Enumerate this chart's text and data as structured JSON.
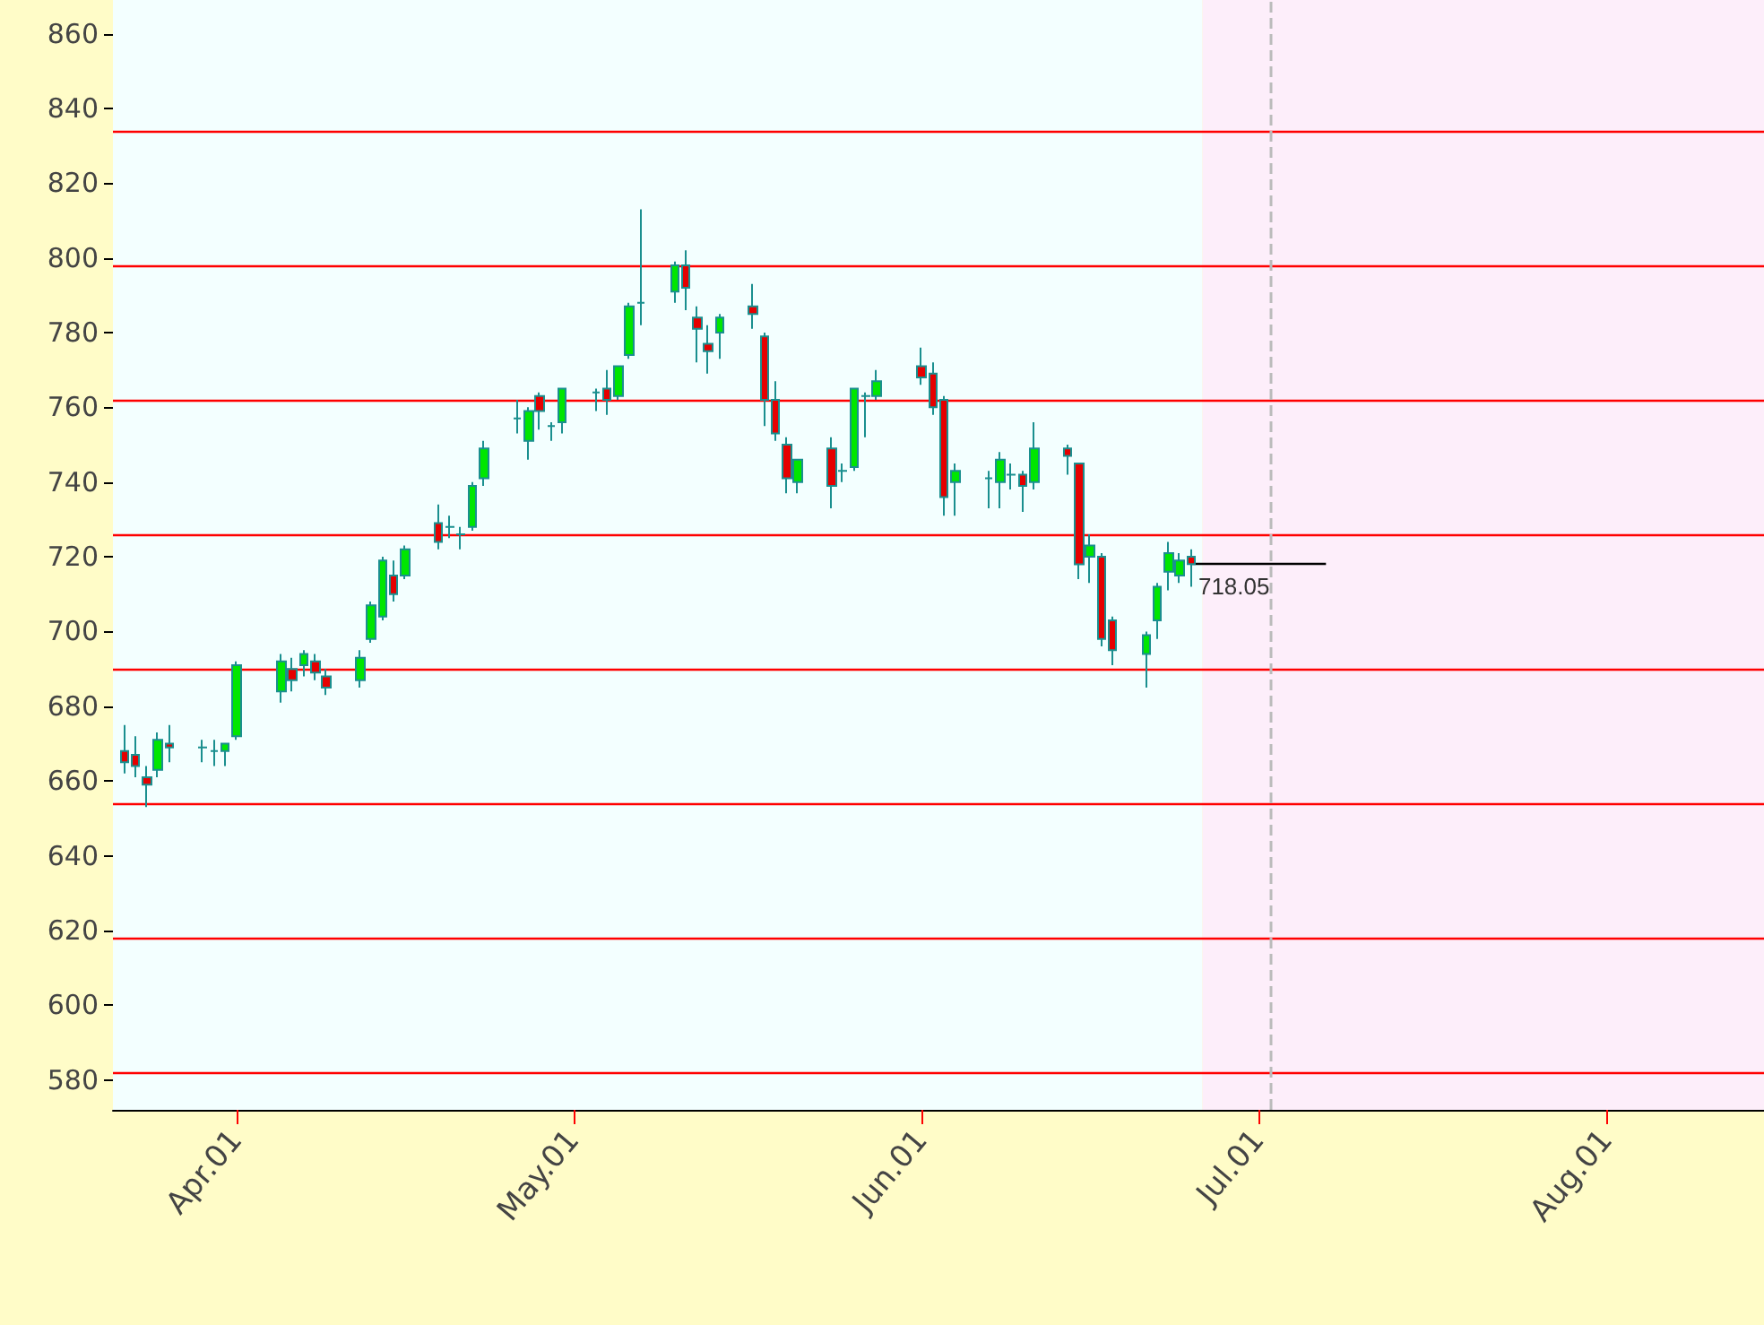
{
  "chart_data": {
    "type": "candlestick",
    "x": [
      "--03-22",
      "--03-23",
      "--03-24",
      "--03-25",
      "--03-26",
      "--03-29",
      "--03-30",
      "--03-31",
      "--04-01",
      "--04-05",
      "--04-06",
      "--04-07",
      "--04-08",
      "--04-09",
      "--04-12",
      "--04-13",
      "--04-14",
      "--04-15",
      "--04-16",
      "--04-19",
      "--04-20",
      "--04-21",
      "--04-22",
      "--04-23",
      "--04-26",
      "--04-27",
      "--04-28",
      "--04-29",
      "--04-30",
      "--05-03",
      "--05-04",
      "--05-05",
      "--05-06",
      "--05-07",
      "--05-10",
      "--05-11",
      "--05-12",
      "--05-13",
      "--05-14",
      "--05-17",
      "--05-18",
      "--05-19",
      "--05-20",
      "--05-21",
      "--05-24",
      "--05-25",
      "--05-26",
      "--05-27",
      "--05-28",
      "--06-01",
      "--06-02",
      "--06-03",
      "--06-04",
      "--06-07",
      "--06-08",
      "--06-09",
      "--06-10",
      "--06-11",
      "--06-14",
      "--06-15",
      "--06-16",
      "--06-17",
      "--06-18",
      "--06-21",
      "--06-22",
      "--06-23",
      "--06-24",
      "--06-25"
    ],
    "ohlc": [
      [
        668,
        675,
        662,
        665
      ],
      [
        667,
        672,
        661,
        664
      ],
      [
        661,
        664,
        653,
        659
      ],
      [
        663,
        673,
        661,
        671
      ],
      [
        670,
        675,
        665,
        669
      ],
      [
        669,
        671,
        665,
        669
      ],
      [
        668,
        671,
        664,
        668
      ],
      [
        668,
        670,
        664,
        670
      ],
      [
        672,
        692,
        671,
        691
      ],
      [
        684,
        694,
        681,
        692
      ],
      [
        690,
        693,
        684,
        687
      ],
      [
        691,
        695,
        688,
        694
      ],
      [
        692,
        694,
        687,
        689
      ],
      [
        688,
        690,
        683,
        685
      ],
      [
        687,
        695,
        685,
        693
      ],
      [
        698,
        708,
        697,
        707
      ],
      [
        704,
        720,
        703,
        719
      ],
      [
        715,
        719,
        708,
        710
      ],
      [
        715,
        723,
        714,
        722
      ],
      [
        729,
        734,
        722,
        724
      ],
      [
        728,
        731,
        725,
        728
      ],
      [
        726,
        728,
        722,
        726
      ],
      [
        728,
        740,
        727,
        739
      ],
      [
        741,
        751,
        739,
        749
      ],
      [
        757,
        762,
        753,
        757
      ],
      [
        751,
        760,
        746,
        759
      ],
      [
        763,
        764,
        754,
        759
      ],
      [
        755,
        756,
        751,
        755
      ],
      [
        756,
        765,
        753,
        765
      ],
      [
        764,
        765,
        759,
        764
      ],
      [
        765,
        770,
        758,
        762
      ],
      [
        763,
        771,
        762,
        771
      ],
      [
        774,
        788,
        773,
        787
      ],
      [
        788,
        813,
        782,
        788
      ],
      [
        791,
        799,
        788,
        798
      ],
      [
        798,
        802,
        786,
        792
      ],
      [
        784,
        787,
        772,
        781
      ],
      [
        777,
        782,
        769,
        775
      ],
      [
        780,
        785,
        773,
        784
      ],
      [
        787,
        793,
        781,
        785
      ],
      [
        779,
        780,
        755,
        762
      ],
      [
        762,
        767,
        751,
        753
      ],
      [
        750,
        752,
        737,
        741
      ],
      [
        740,
        746,
        737,
        746
      ],
      [
        749,
        752,
        733,
        739
      ],
      [
        743,
        745,
        740,
        743
      ],
      [
        744,
        765,
        743,
        765
      ],
      [
        763,
        764,
        752,
        763
      ],
      [
        763,
        770,
        762,
        767
      ],
      [
        771,
        776,
        766,
        768
      ],
      [
        769,
        772,
        758,
        760
      ],
      [
        762,
        763,
        731,
        736
      ],
      [
        740,
        745,
        731,
        743
      ],
      [
        741,
        743,
        733,
        741
      ],
      [
        740,
        748,
        733,
        746
      ],
      [
        742,
        745,
        738,
        742
      ],
      [
        742,
        743,
        732,
        739
      ],
      [
        740,
        756,
        738,
        749
      ],
      [
        749,
        750,
        742,
        747
      ],
      [
        745,
        745,
        714,
        718
      ],
      [
        720,
        726,
        713,
        723
      ],
      [
        720,
        721,
        696,
        698
      ],
      [
        703,
        704,
        691,
        695
      ],
      [
        694,
        700,
        685,
        699
      ],
      [
        703,
        713,
        698,
        712
      ],
      [
        716,
        724,
        711,
        721
      ],
      [
        715,
        721,
        713,
        719
      ],
      [
        720,
        722,
        712,
        718.05
      ]
    ],
    "colors": [
      "#e60000",
      "#e60000",
      "#e60000",
      "#00e600",
      "#e60000",
      "#1a8f8f",
      "#1a8f8f",
      "#00e600",
      "#00e600",
      "#00e600",
      "#e60000",
      "#00e600",
      "#e60000",
      "#e60000",
      "#00e600",
      "#00e600",
      "#00e600",
      "#e60000",
      "#00e600",
      "#e60000",
      "#1a8f8f",
      "#1a8f8f",
      "#00e600",
      "#00e600",
      "#1a8f8f",
      "#00e600",
      "#e60000",
      "#1a8f8f",
      "#00e600",
      "#1a8f8f",
      "#e60000",
      "#00e600",
      "#00e600",
      "#1a8f8f",
      "#00e600",
      "#e60000",
      "#e60000",
      "#e60000",
      "#00e600",
      "#e60000",
      "#e60000",
      "#e60000",
      "#e60000",
      "#00e600",
      "#e60000",
      "#1a8f8f",
      "#00e600",
      "#1a8f8f",
      "#00e600",
      "#e60000",
      "#e60000",
      "#e60000",
      "#00e600",
      "#1a8f8f",
      "#00e600",
      "#1a8f8f",
      "#e60000",
      "#00e600",
      "#e60000",
      "#e60000",
      "#00e600",
      "#e60000",
      "#e60000",
      "#00e600",
      "#00e600",
      "#00e600",
      "#00e600",
      "#e60000"
    ],
    "xlim": [
      "--03-21",
      "--08-15"
    ],
    "xticks": [
      {
        "value": "--04-01",
        "label": "Apr.01"
      },
      {
        "value": "--05-01",
        "label": "May.01"
      },
      {
        "value": "--06-01",
        "label": "Jun.01"
      },
      {
        "value": "--07-01",
        "label": "Jul.01"
      },
      {
        "value": "--08-01",
        "label": "Aug.01"
      }
    ],
    "ylim": [
      572,
      869
    ],
    "yticks": [
      580,
      600,
      620,
      640,
      660,
      680,
      700,
      720,
      740,
      760,
      780,
      800,
      820,
      840,
      860
    ],
    "grid": false,
    "annotations": [
      {
        "text": "718.05",
        "x": "--06-25",
        "y": 718.05
      }
    ],
    "ref_lines": [
      {
        "axis": "y",
        "value": 834,
        "color": "#ff0000"
      },
      {
        "axis": "y",
        "value": 798,
        "color": "#ff0000"
      },
      {
        "axis": "y",
        "value": 762,
        "color": "#ff0000"
      },
      {
        "axis": "y",
        "value": 726,
        "color": "#ff0000"
      },
      {
        "axis": "y",
        "value": 690,
        "color": "#ff0000"
      },
      {
        "axis": "y",
        "value": 654,
        "color": "#ff0000"
      },
      {
        "axis": "y",
        "value": 618,
        "color": "#ff0000"
      },
      {
        "axis": "y",
        "value": 582,
        "color": "#ff0000"
      },
      {
        "axis": "x",
        "value": "--07-02",
        "color": "#bbbbbb",
        "line_style": "dashed"
      }
    ],
    "bands": [
      {
        "axis": "x",
        "from": "--03-21",
        "to": "--06-26",
        "color": "#f3ffff"
      },
      {
        "axis": "x",
        "from": "--06-26",
        "to": "--08-15",
        "color": "#fdeefa"
      }
    ]
  }
}
